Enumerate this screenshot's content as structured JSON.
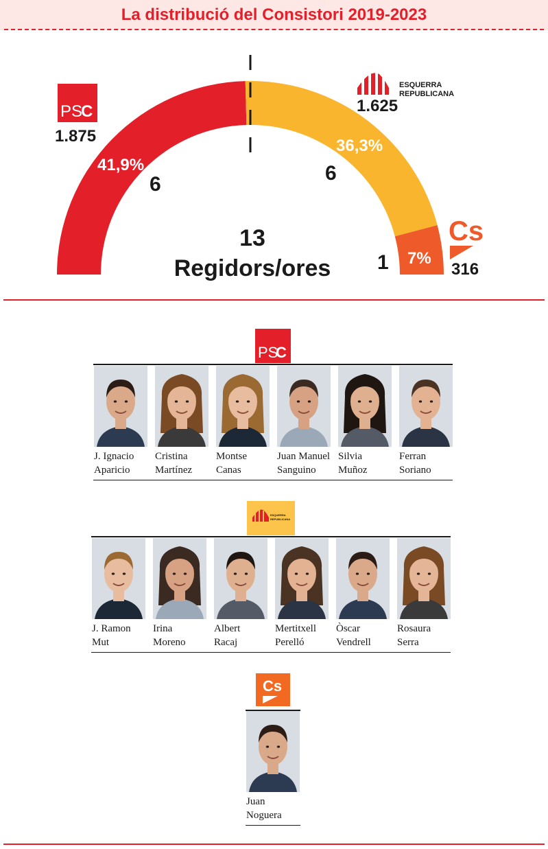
{
  "header": {
    "title": "La distribució del Consistori 2019-2023"
  },
  "chart_data": {
    "type": "pie",
    "variant": "half-donut",
    "total_seats": "13",
    "total_label": "Regidors/ores",
    "parties": [
      {
        "key": "psc",
        "logo_text_a": "PS",
        "logo_text_b": "C",
        "votes": "1.875",
        "percent": 41.9,
        "percent_label": "41,9%",
        "seats": "6",
        "color": "#e3202a"
      },
      {
        "key": "erc",
        "logo_text_a": "ESQUERRA",
        "logo_text_b": "REPUBLICANA",
        "votes": "1.625",
        "percent": 36.3,
        "percent_label": "36,3%",
        "seats": "6",
        "color": "#fab52f"
      },
      {
        "key": "cs",
        "logo_text_a": "Cs",
        "votes": "316",
        "percent": 7,
        "percent_label": "7%",
        "seats": "1",
        "color": "#ef5a2b"
      }
    ]
  },
  "groups": {
    "psc": {
      "logo_a": "PS",
      "logo_b": "C",
      "members": [
        {
          "first": "J. Ignacio",
          "last": "Aparicio"
        },
        {
          "first": "Cristina",
          "last": "Martínez"
        },
        {
          "first": "Montse",
          "last": "Canas"
        },
        {
          "first": "Juan Manuel",
          "last": "Sanguino"
        },
        {
          "first": "Silvia",
          "last": "Muñoz"
        },
        {
          "first": "Ferran",
          "last": "Soriano"
        }
      ]
    },
    "erc": {
      "logo_a": "ESQUERRA",
      "logo_b": "REPUBLICANA",
      "members": [
        {
          "first": "J. Ramon",
          "last": "Mut"
        },
        {
          "first": "Irina",
          "last": "Moreno"
        },
        {
          "first": "Albert",
          "last": "Racaj"
        },
        {
          "first": "Mertitxell",
          "last": "Perelló"
        },
        {
          "first": "Òscar",
          "last": "Vendrell"
        },
        {
          "first": "Rosaura",
          "last": "Serra"
        }
      ]
    },
    "cs": {
      "logo_a": "Cs",
      "members": [
        {
          "first": "Juan",
          "last": "Noguera"
        }
      ]
    }
  }
}
